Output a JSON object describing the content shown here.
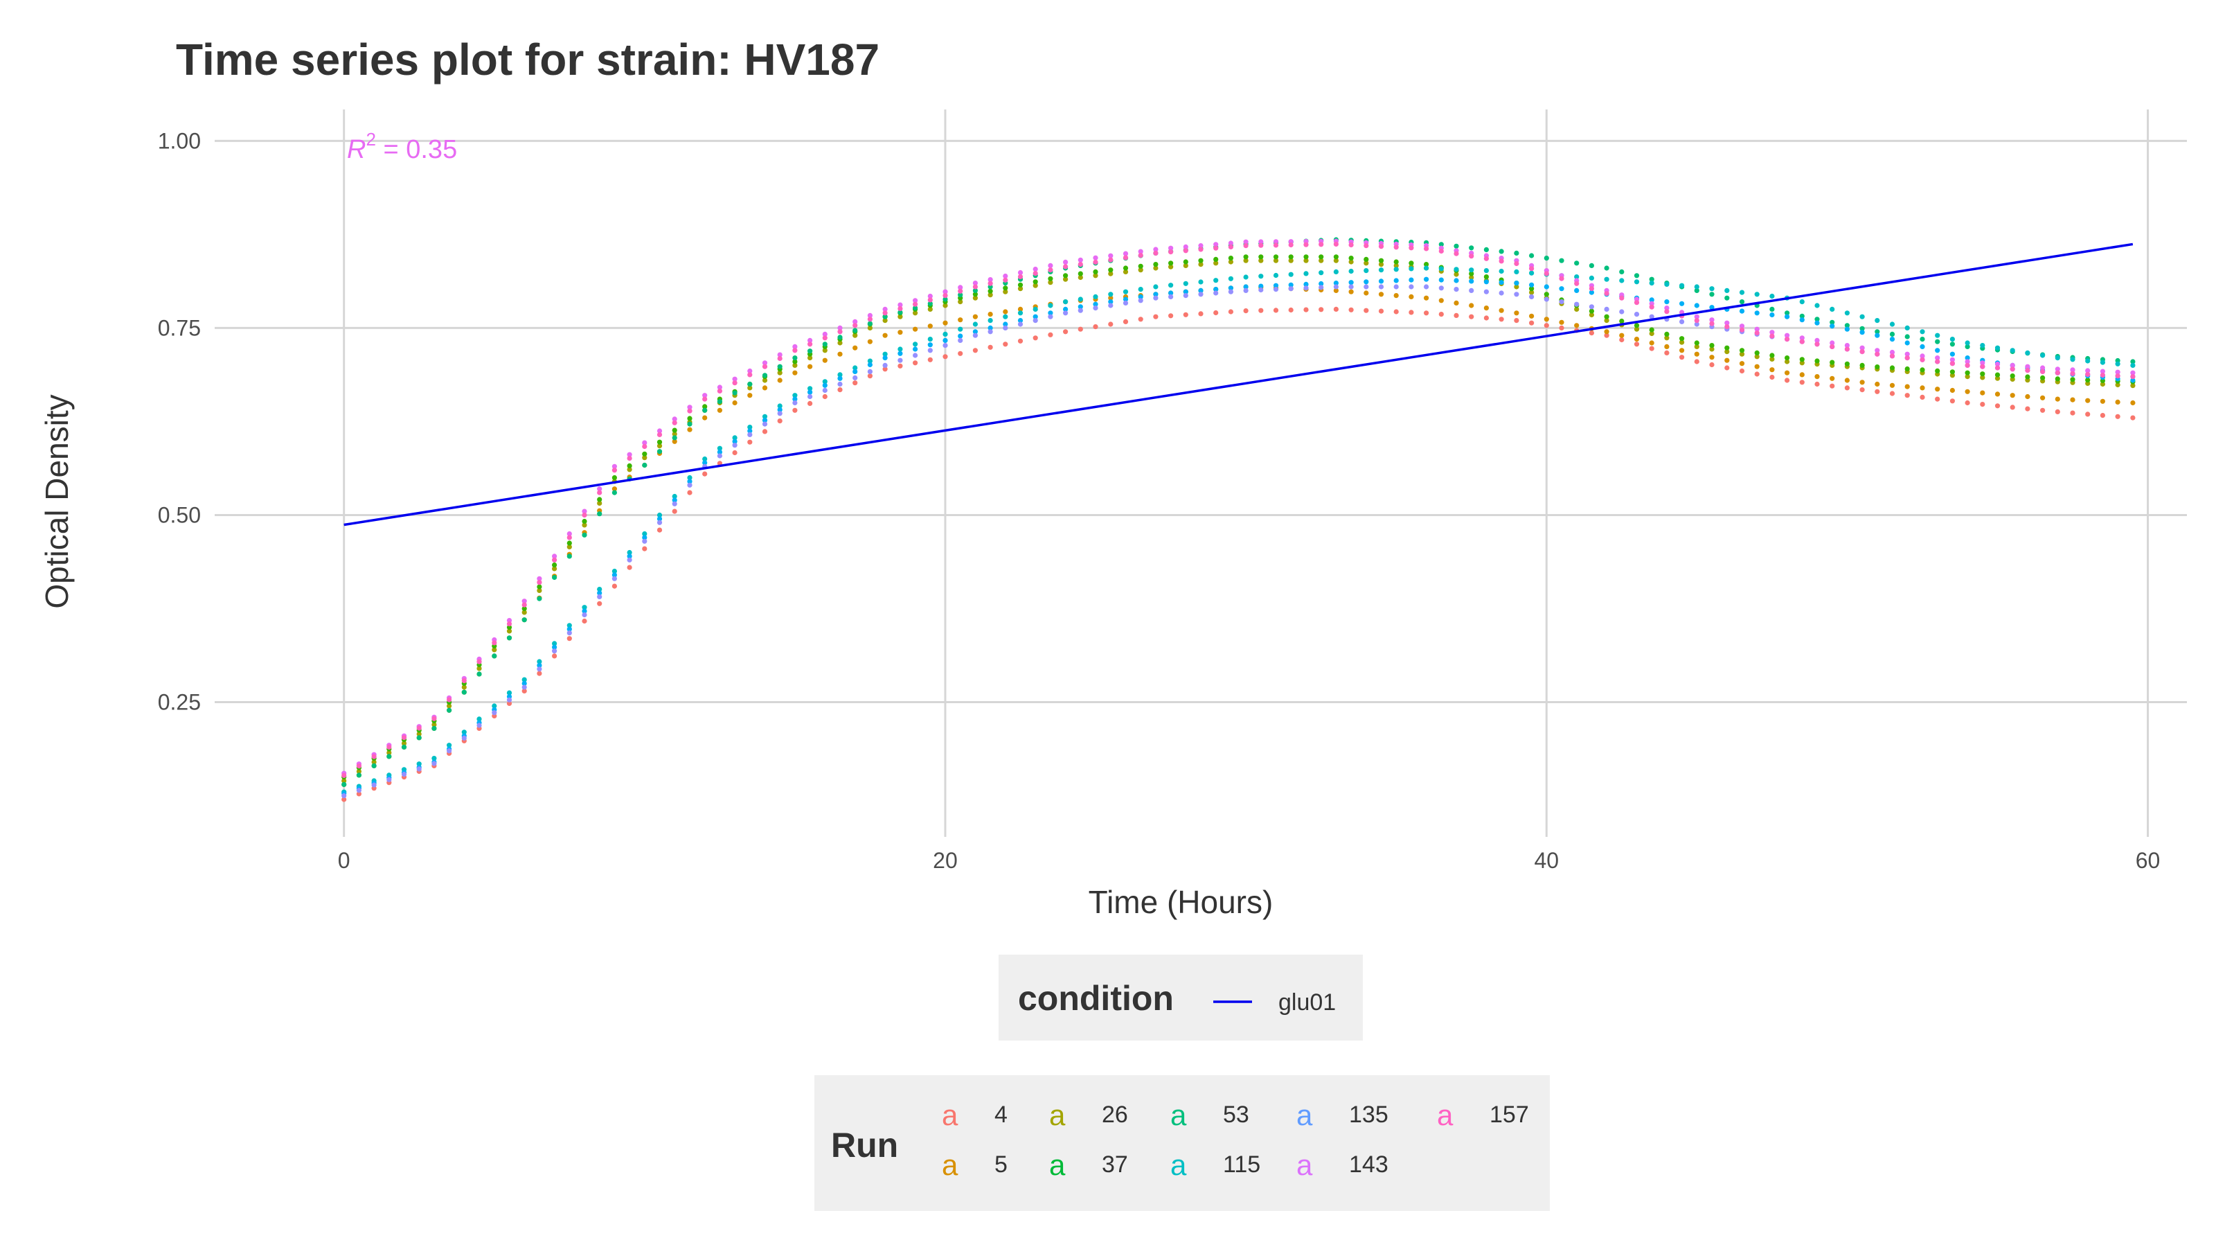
{
  "chart_data": {
    "type": "scatter",
    "title": "Time series plot for strain: HV187",
    "xlabel": "Time (Hours)",
    "ylabel": "Optical Density",
    "xlim": [
      -4.3,
      61.3
    ],
    "ylim": [
      0.07,
      1.042
    ],
    "x_ticks": [
      0,
      20,
      40,
      60
    ],
    "y_ticks": [
      0.25,
      0.5,
      0.75,
      1.0
    ],
    "y_tick_labels": [
      "0.25",
      "0.50",
      "0.75",
      "1.00"
    ],
    "grid": true,
    "sampling": {
      "x_start": 0,
      "x_end": 59.5,
      "x_step": 0.5
    },
    "r2_annotation": {
      "prefix": "R",
      "sup": "2",
      "text": " = 0.35",
      "x": 0.1,
      "y": 0.99
    },
    "fit_line": {
      "name": "glu01",
      "color": "#0000ee",
      "x": [
        0,
        59.5
      ],
      "y": [
        0.487,
        0.862
      ]
    },
    "series": [
      {
        "name": "4",
        "color": "#F8766D",
        "x": [
          0,
          3,
          6,
          9,
          12,
          15,
          18,
          21,
          24,
          27,
          30,
          33,
          36,
          39,
          42,
          45,
          48,
          51,
          54,
          57,
          59.5
        ],
        "y": [
          0.12,
          0.165,
          0.265,
          0.405,
          0.555,
          0.64,
          0.695,
          0.72,
          0.745,
          0.765,
          0.773,
          0.775,
          0.77,
          0.76,
          0.74,
          0.705,
          0.68,
          0.665,
          0.65,
          0.638,
          0.63
        ]
      },
      {
        "name": "5",
        "color": "#D89000",
        "x": [
          0,
          3,
          6,
          9,
          12,
          15,
          18,
          21,
          24,
          27,
          30,
          33,
          36,
          39,
          42,
          45,
          48,
          51,
          54,
          57,
          59.5
        ],
        "y": [
          0.14,
          0.215,
          0.36,
          0.535,
          0.63,
          0.69,
          0.74,
          0.765,
          0.785,
          0.795,
          0.805,
          0.8,
          0.79,
          0.77,
          0.745,
          0.715,
          0.69,
          0.675,
          0.665,
          0.655,
          0.65
        ]
      },
      {
        "name": "26",
        "color": "#A3A500",
        "x": [
          0,
          3,
          6,
          9,
          12,
          15,
          18,
          21,
          24,
          27,
          30,
          33,
          36,
          39,
          42,
          45,
          48,
          51,
          54,
          57,
          59.5
        ],
        "y": [
          0.145,
          0.22,
          0.37,
          0.545,
          0.64,
          0.7,
          0.76,
          0.79,
          0.815,
          0.83,
          0.84,
          0.84,
          0.83,
          0.805,
          0.76,
          0.725,
          0.705,
          0.695,
          0.685,
          0.678,
          0.673
        ]
      },
      {
        "name": "37",
        "color": "#39B600",
        "x": [
          0,
          3,
          6,
          9,
          12,
          15,
          18,
          21,
          24,
          27,
          30,
          33,
          36,
          39,
          42,
          45,
          48,
          51,
          54,
          57,
          59.5
        ],
        "y": [
          0.15,
          0.225,
          0.375,
          0.55,
          0.645,
          0.705,
          0.765,
          0.795,
          0.82,
          0.835,
          0.845,
          0.845,
          0.835,
          0.81,
          0.765,
          0.73,
          0.71,
          0.698,
          0.69,
          0.682,
          0.678
        ]
      },
      {
        "name": "53",
        "color": "#00BF7D",
        "x": [
          0,
          3,
          6,
          9,
          12,
          15,
          18,
          21,
          24,
          27,
          30,
          33,
          36,
          39,
          42,
          45,
          48,
          51,
          54,
          57,
          59.5
        ],
        "y": [
          0.14,
          0.215,
          0.36,
          0.53,
          0.64,
          0.71,
          0.765,
          0.8,
          0.83,
          0.85,
          0.862,
          0.868,
          0.864,
          0.85,
          0.83,
          0.8,
          0.77,
          0.745,
          0.725,
          0.712,
          0.705
        ]
      },
      {
        "name": "115",
        "color": "#00BFC4",
        "x": [
          0,
          3,
          6,
          9,
          12,
          15,
          18,
          21,
          24,
          27,
          30,
          33,
          36,
          39,
          42,
          45,
          48,
          51,
          54,
          57,
          59.5
        ],
        "y": [
          0.13,
          0.175,
          0.28,
          0.425,
          0.575,
          0.66,
          0.715,
          0.755,
          0.785,
          0.805,
          0.818,
          0.825,
          0.83,
          0.825,
          0.815,
          0.805,
          0.79,
          0.76,
          0.73,
          0.71,
          0.7
        ]
      },
      {
        "name": "135",
        "color": "#00B0F6",
        "x": [
          0,
          3,
          6,
          9,
          12,
          15,
          18,
          21,
          24,
          27,
          30,
          33,
          36,
          39,
          42,
          45,
          48,
          51,
          54,
          57,
          59.5
        ],
        "y": [
          0.128,
          0.17,
          0.275,
          0.42,
          0.57,
          0.655,
          0.71,
          0.745,
          0.775,
          0.795,
          0.805,
          0.81,
          0.815,
          0.81,
          0.795,
          0.78,
          0.765,
          0.74,
          0.71,
          0.69,
          0.68
        ]
      },
      {
        "name": "143",
        "color": "#9590FF",
        "x": [
          0,
          3,
          6,
          9,
          12,
          15,
          18,
          21,
          24,
          27,
          30,
          33,
          36,
          39,
          42,
          45,
          48,
          51,
          54,
          57,
          59.5
        ],
        "y": [
          0.125,
          0.168,
          0.27,
          0.415,
          0.565,
          0.65,
          0.7,
          0.74,
          0.77,
          0.79,
          0.8,
          0.805,
          0.805,
          0.795,
          0.775,
          0.755,
          0.735,
          0.715,
          0.7,
          0.69,
          0.685
        ]
      },
      {
        "name": "157",
        "color": "#E76BF3",
        "x": [
          0,
          3,
          6,
          9,
          12,
          15,
          18,
          21,
          24,
          27,
          30,
          33,
          36,
          39,
          42,
          45,
          48,
          51,
          54,
          57,
          59.5
        ],
        "y": [
          0.155,
          0.23,
          0.385,
          0.565,
          0.66,
          0.725,
          0.775,
          0.81,
          0.838,
          0.855,
          0.865,
          0.866,
          0.86,
          0.84,
          0.8,
          0.765,
          0.74,
          0.72,
          0.705,
          0.695,
          0.69
        ]
      },
      {
        "name": "",
        "color": "#FF62BC",
        "x": [
          0,
          3,
          6,
          9,
          12,
          15,
          18,
          21,
          24,
          27,
          30,
          33,
          36,
          39,
          42,
          45,
          48,
          51,
          54,
          57,
          59.5
        ],
        "y": [
          0.152,
          0.228,
          0.38,
          0.56,
          0.655,
          0.72,
          0.77,
          0.805,
          0.832,
          0.85,
          0.86,
          0.862,
          0.856,
          0.836,
          0.796,
          0.76,
          0.735,
          0.715,
          0.7,
          0.69,
          0.685
        ]
      }
    ],
    "legend_condition": {
      "title": "condition",
      "label": "glu01",
      "color": "#0000ee"
    },
    "legend_run": {
      "title": "Run",
      "glyph": "a",
      "items": [
        {
          "label": "4",
          "color": "#F8766D"
        },
        {
          "label": "5",
          "color": "#D89000"
        },
        {
          "label": "26",
          "color": "#A3A500"
        },
        {
          "label": "37",
          "color": "#00BA38"
        },
        {
          "label": "53",
          "color": "#00BF7D"
        },
        {
          "label": "115",
          "color": "#00BFC4"
        },
        {
          "label": "135",
          "color": "#619CFF"
        },
        {
          "label": "143",
          "color": "#DB72FB"
        },
        {
          "label": "157",
          "color": "#FF61C3"
        }
      ]
    },
    "legend_placement": "bottom"
  }
}
